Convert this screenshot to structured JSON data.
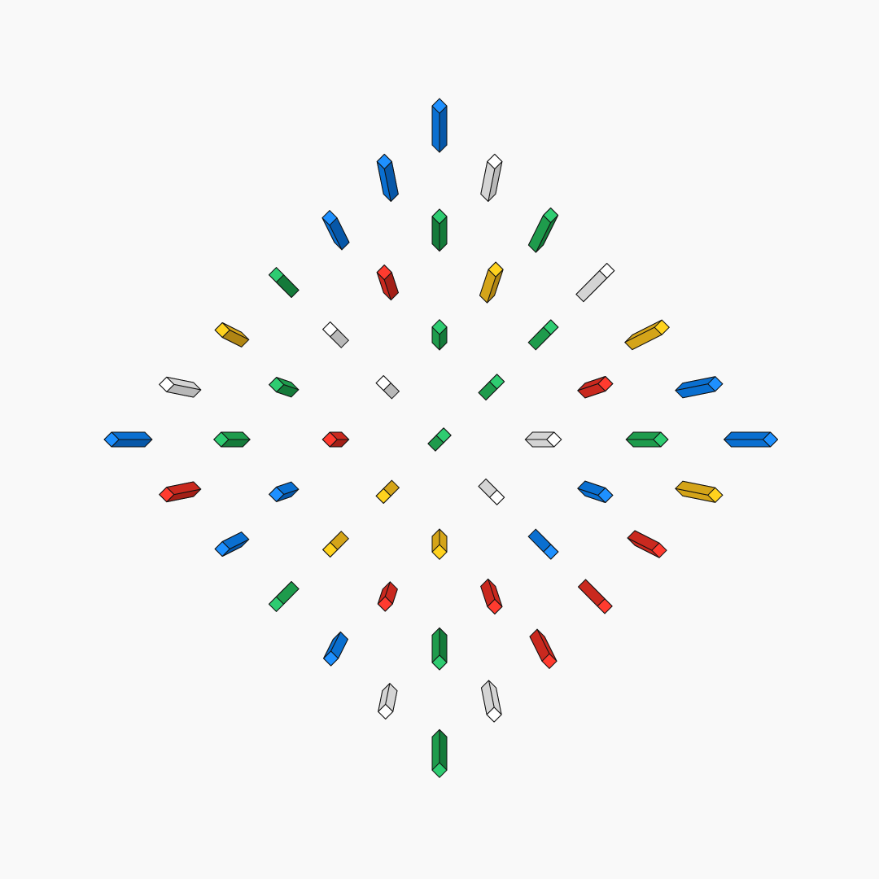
{
  "palette": {
    "background": "#f9f9f9",
    "blue": {
      "top": "#1e90ff",
      "side": "#0a6fd0",
      "dark": "#0757a8"
    },
    "green": {
      "top": "#2ecc71",
      "side": "#1e9b4c",
      "dark": "#157a3a"
    },
    "red": {
      "top": "#ff3b2f",
      "side": "#c9291f",
      "dark": "#a31f17"
    },
    "yellow": {
      "top": "#ffd21e",
      "side": "#d4a419",
      "dark": "#b08513"
    },
    "white": {
      "top": "#ffffff",
      "side": "#d4d4d4",
      "dark": "#b8b8b8"
    },
    "outline": "#111111"
  },
  "grid": {
    "rows": [
      [
        "blue"
      ],
      [
        "blue",
        "white"
      ],
      [
        "blue",
        "green",
        "green"
      ],
      [
        "green",
        "red",
        "yellow",
        "white"
      ],
      [
        "yellow",
        "white",
        "green",
        "green",
        "yellow"
      ],
      [
        "white",
        "green",
        "white",
        "green",
        "red",
        "blue"
      ],
      [
        "blue",
        "green",
        "red",
        "green",
        "white",
        "green",
        "blue"
      ],
      [
        "red",
        "blue",
        "yellow",
        "white",
        "blue",
        "yellow"
      ],
      [
        "blue",
        "yellow",
        "yellow",
        "blue",
        "red"
      ],
      [
        "green",
        "red",
        "red",
        "red"
      ],
      [
        "blue",
        "green",
        "red"
      ],
      [
        "white",
        "white"
      ],
      [
        "green"
      ]
    ],
    "lengths": [
      [
        1.0
      ],
      [
        0.85,
        0.85
      ],
      [
        0.7,
        0.7,
        0.85
      ],
      [
        0.55,
        0.55,
        0.7,
        0.85
      ],
      [
        0.55,
        0.4,
        0.4,
        0.55,
        0.85
      ],
      [
        0.7,
        0.4,
        0.3,
        0.4,
        0.55,
        0.85
      ],
      [
        0.85,
        0.55,
        0.3,
        0.3,
        0.55,
        0.7,
        1.0
      ],
      [
        0.7,
        0.4,
        0.3,
        0.4,
        0.55,
        0.85
      ],
      [
        0.55,
        0.4,
        0.4,
        0.55,
        0.7
      ],
      [
        0.55,
        0.4,
        0.55,
        0.7
      ],
      [
        0.55,
        0.7,
        0.7
      ],
      [
        0.55,
        0.7
      ],
      [
        0.85
      ]
    ]
  }
}
